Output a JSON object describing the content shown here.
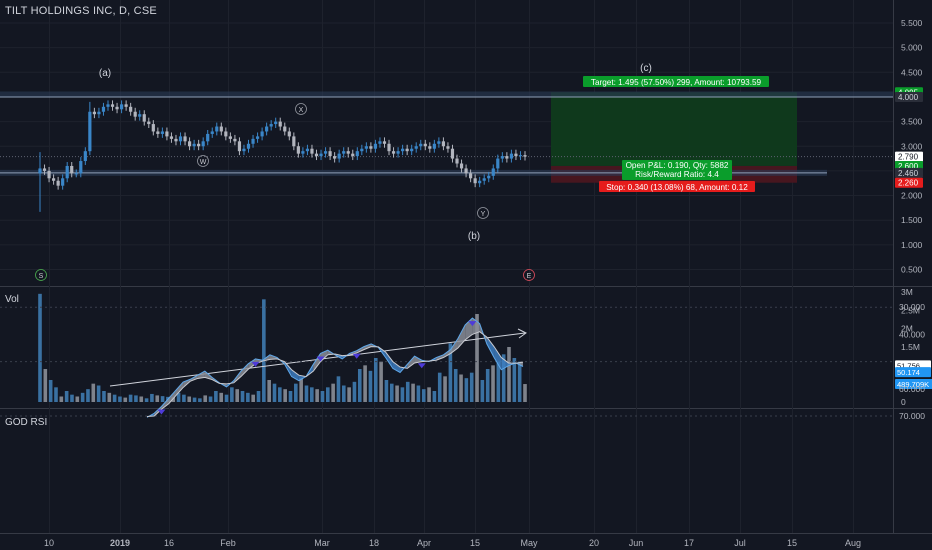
{
  "title": "TILT HOLDINGS INC, D, CSE",
  "colors": {
    "background": "#131722",
    "grid": "#1e222d",
    "text": "#b2b5be",
    "up": "#3a86c8",
    "down": "#b2b5be",
    "target_zone": "#0f3b1c",
    "stop_zone": "#4a1620",
    "green_label": "#0a9d2b",
    "red_label": "#e51c1c"
  },
  "chart_data": [
    {
      "type": "candlestick",
      "pane": "price",
      "y_axis_ticks": [
        "5.500",
        "5.000",
        "4.500",
        "4.000",
        "3.500",
        "3.000",
        "2.500",
        "2.000",
        "1.500",
        "1.000",
        "0.500"
      ],
      "x_axis_ticks": [
        "10",
        "2019",
        "16",
        "Feb",
        "Mar",
        "18",
        "Apr",
        "15",
        "May",
        "20",
        "Jun",
        "17",
        "Jul",
        "15",
        "Aug"
      ],
      "ylim": [
        0.2,
        5.9
      ],
      "close_values": [
        2.55,
        2.5,
        2.35,
        2.3,
        2.2,
        2.35,
        2.6,
        2.45,
        2.45,
        2.7,
        2.9,
        3.7,
        3.65,
        3.7,
        3.8,
        3.85,
        3.8,
        3.75,
        3.85,
        3.8,
        3.7,
        3.6,
        3.65,
        3.5,
        3.45,
        3.3,
        3.25,
        3.3,
        3.2,
        3.15,
        3.1,
        3.2,
        3.1,
        3.0,
        3.05,
        3.0,
        3.1,
        3.25,
        3.3,
        3.4,
        3.3,
        3.2,
        3.15,
        3.1,
        2.9,
        2.95,
        3.05,
        3.15,
        3.2,
        3.3,
        3.4,
        3.45,
        3.5,
        3.4,
        3.3,
        3.2,
        3.0,
        2.85,
        2.9,
        2.95,
        2.85,
        2.8,
        2.85,
        2.9,
        2.8,
        2.75,
        2.85,
        2.9,
        2.85,
        2.8,
        2.9,
        2.95,
        3.0,
        2.95,
        3.05,
        3.1,
        3.05,
        2.9,
        2.85,
        2.9,
        2.95,
        2.9,
        2.95,
        3.0,
        3.05,
        3.0,
        2.95,
        3.05,
        3.1,
        3.0,
        2.95,
        2.75,
        2.65,
        2.55,
        2.45,
        2.35,
        2.25,
        2.3,
        2.35,
        2.4,
        2.55,
        2.75,
        2.8,
        2.75,
        2.85,
        2.8,
        2.82,
        2.79
      ],
      "wave_labels": [
        "(a)",
        "(b)",
        "(c)",
        "W",
        "X",
        "Y",
        "S",
        "E"
      ],
      "price_labels": {
        "target": "4.095",
        "stop": "2.260",
        "upper_line": "4.000",
        "current": "2.790",
        "open_pl": "2.600",
        "entry": "2.460"
      },
      "annotations": {
        "target": "Target: 1.495 (57.50%) 299, Amount: 10793.59",
        "open_pl": "Open P&L: 0.190, Qty: 5882",
        "risk_reward": "Risk/Reward Ratio: 4.4",
        "stop": "Stop: 0.340 (13.08%) 68, Amount: 0.12"
      }
    },
    {
      "type": "bar",
      "pane": "volume",
      "label": "Vol",
      "y_axis_ticks": [
        "3M",
        "2.5M",
        "2M",
        "1.5M",
        "1M",
        "500K",
        "0"
      ],
      "ylim": [
        0,
        3100000
      ],
      "current_label": "489.709K",
      "values": [
        2950000,
        900000,
        600000,
        400000,
        150000,
        300000,
        200000,
        150000,
        250000,
        350000,
        500000,
        450000,
        300000,
        250000,
        200000,
        150000,
        120000,
        200000,
        180000,
        150000,
        100000,
        220000,
        180000,
        160000,
        140000,
        130000,
        250000,
        200000,
        150000,
        120000,
        100000,
        180000,
        150000,
        300000,
        250000,
        200000,
        400000,
        350000,
        300000,
        250000,
        200000,
        300000,
        2800000,
        600000,
        500000,
        400000,
        350000,
        300000,
        500000,
        650000,
        450000,
        400000,
        350000,
        300000,
        400000,
        500000,
        700000,
        450000,
        400000,
        550000,
        900000,
        1000000,
        850000,
        1200000,
        1100000,
        600000,
        500000,
        450000,
        400000,
        550000,
        500000,
        450000,
        350000,
        400000,
        300000,
        800000,
        700000,
        1600000,
        900000,
        750000,
        650000,
        800000,
        2400000,
        600000,
        900000,
        1000000,
        1100000,
        1300000,
        1500000,
        1200000,
        1100000,
        490000
      ]
    },
    {
      "type": "line",
      "pane": "rsi",
      "label": "GOD RSI",
      "y_axis_ticks": [
        "70.000",
        "60.000",
        "40.000",
        "30.000"
      ],
      "current_labels": {
        "rsi_a": "51.756",
        "rsi_b": "50.174"
      },
      "ylim": [
        29,
        71
      ],
      "series_a": [
        70.5,
        69.0,
        66.5,
        63.5,
        60.5,
        57.5,
        56.5,
        55.0,
        53.5,
        55.8,
        57.8,
        59.3,
        57.0,
        53.5,
        50.8,
        49.0,
        49.5,
        47.5,
        48.5,
        50.8,
        55.5,
        57.0,
        55.5,
        51.0,
        47.0,
        45.8,
        47.5,
        49.0,
        47.0,
        46.0,
        44.5,
        43.5,
        44.8,
        48.5,
        52.5,
        54.0,
        51.0,
        48.0,
        49.5,
        50.0,
        48.5,
        47.5,
        45.5,
        41.5,
        36.5,
        34.0,
        36.0,
        43.5,
        48.5,
        53.0,
        51.5,
        50.5,
        51.8
      ],
      "series_b": [
        70.2,
        70.0,
        67.5,
        65.5,
        62.5,
        59.5,
        57.2,
        56.2,
        55.8,
        56.6,
        58.0,
        58.2,
        57.8,
        55.5,
        52.8,
        50.8,
        49.8,
        49.2,
        49.0,
        50.0,
        53.0,
        55.0,
        55.5,
        53.5,
        50.0,
        47.5,
        47.2,
        47.8,
        47.6,
        46.8,
        45.6,
        44.5,
        44.6,
        46.5,
        50.0,
        52.0,
        52.5,
        50.5,
        50.0,
        49.8,
        49.5,
        48.5,
        47.0,
        45.0,
        42.0,
        40.0,
        39.0,
        41.0,
        44.5,
        48.5,
        50.5,
        50.6,
        50.2
      ]
    }
  ]
}
